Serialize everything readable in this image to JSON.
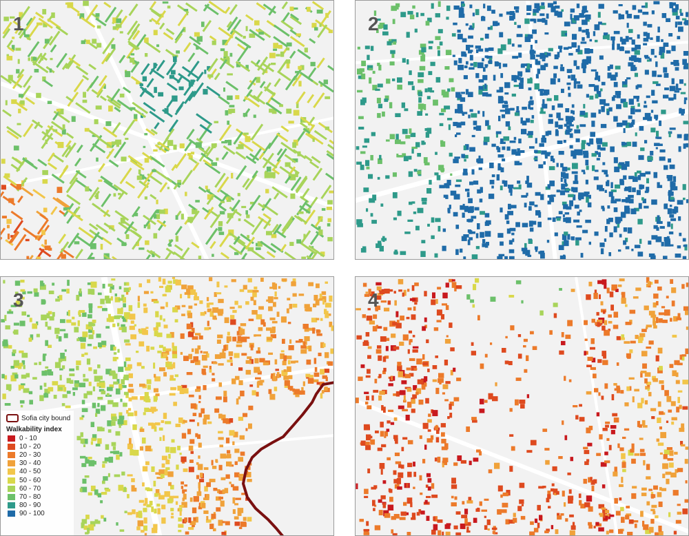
{
  "panels": [
    {
      "number": "1"
    },
    {
      "number": "2"
    },
    {
      "number": "3"
    },
    {
      "number": "4"
    }
  ],
  "legend": {
    "boundary_label": "Sofia city bound",
    "boundary_color": "#7a1010",
    "title": "Walkability index",
    "items": [
      {
        "label": "0 - 10",
        "color": "#c8191e"
      },
      {
        "label": "10 - 20",
        "color": "#de4a1f"
      },
      {
        "label": "20 - 30",
        "color": "#ec7a2a"
      },
      {
        "label": "30 - 40",
        "color": "#f0a23a"
      },
      {
        "label": "40 - 50",
        "color": "#f2c64a"
      },
      {
        "label": "50 - 60",
        "color": "#d9d84a"
      },
      {
        "label": "60 - 70",
        "color": "#a8d45a"
      },
      {
        "label": "70 - 80",
        "color": "#6cc06a"
      },
      {
        "label": "80 - 90",
        "color": "#2e9a8a"
      },
      {
        "label": "90 - 100",
        "color": "#1f6ba8"
      }
    ]
  }
}
